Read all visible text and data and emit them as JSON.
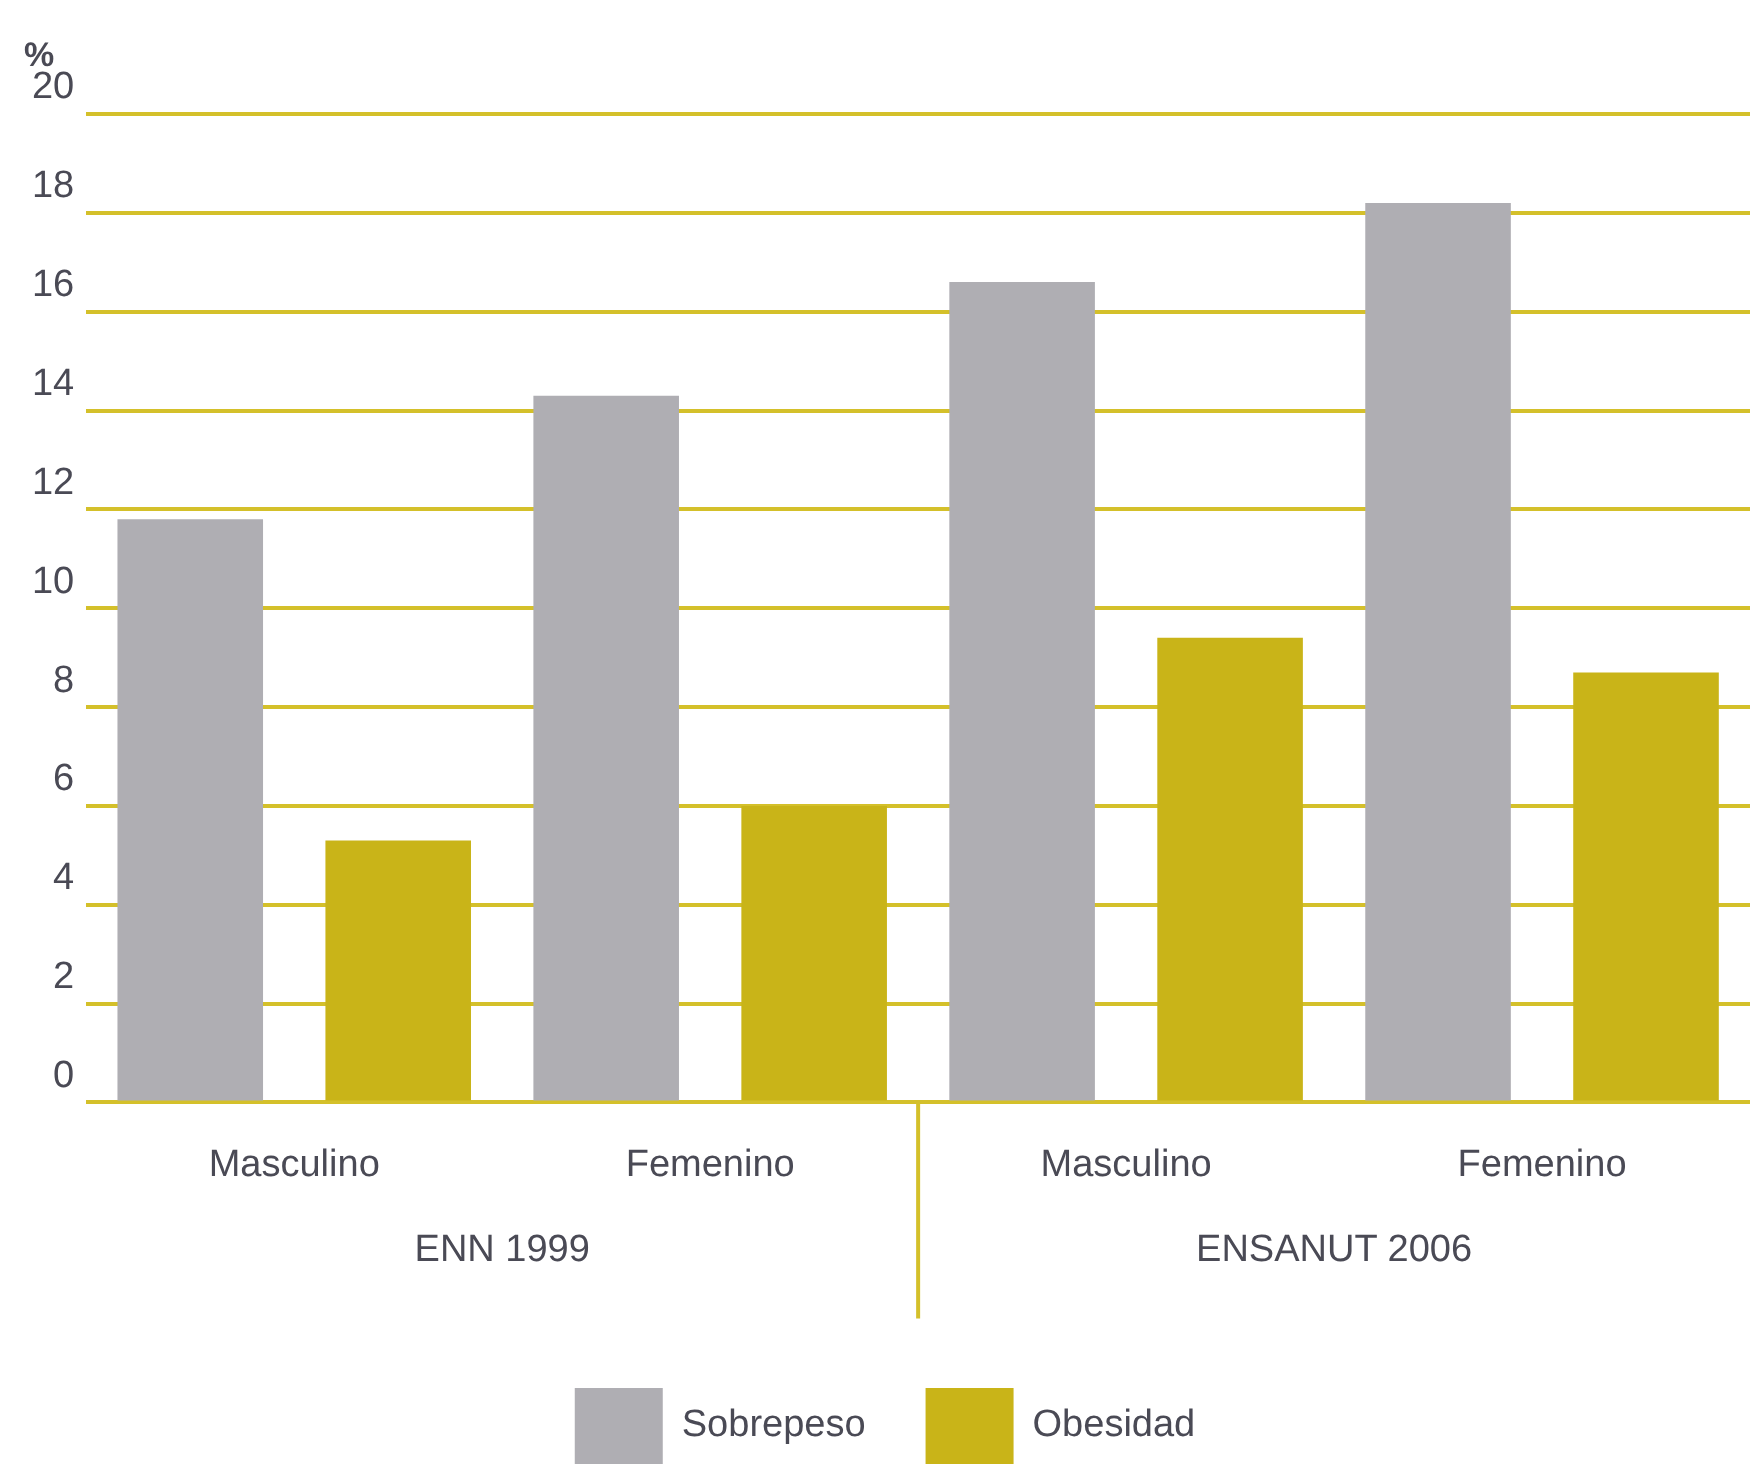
{
  "chart_data": {
    "type": "bar",
    "ylabel": "%",
    "categories": [
      "Masculino",
      "Femenino",
      "Masculino",
      "Femenino"
    ],
    "series": [
      {
        "name": "Sobrepeso",
        "color": "#afaeb3",
        "values": [
          11.8,
          14.3,
          16.6,
          18.2
        ]
      },
      {
        "name": "Obesidad",
        "color": "#c9b418",
        "values": [
          5.3,
          6.0,
          9.4,
          8.7
        ]
      }
    ],
    "ylim": [
      0,
      20
    ],
    "yticks": [
      0,
      2,
      4,
      6,
      8,
      10,
      12,
      14,
      16,
      18,
      20
    ],
    "grid": "y",
    "legend": "bottom",
    "annotations": [
      "ENN 1999",
      "ENSANUT 2006"
    ]
  }
}
